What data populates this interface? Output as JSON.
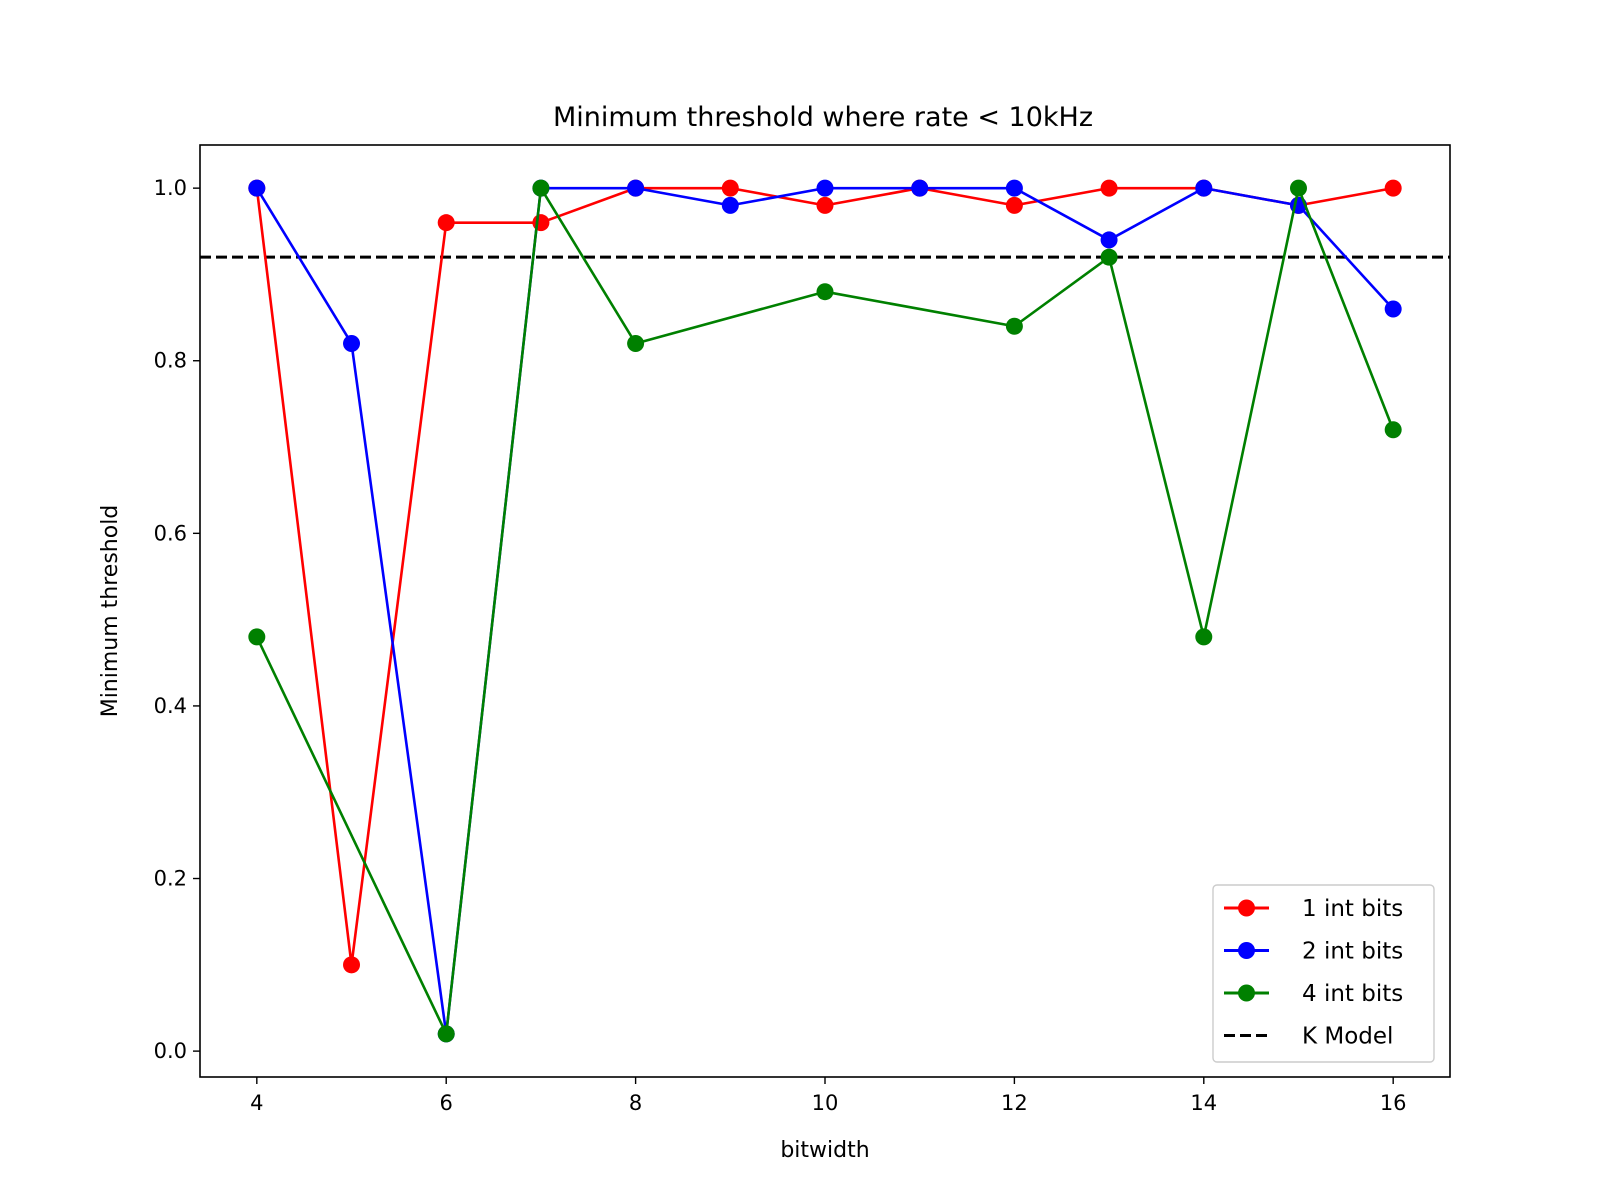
{
  "chart_data": {
    "type": "line",
    "title": "Minimum threshold where rate < 10kHz",
    "xlabel": "bitwidth",
    "ylabel": "Minimum threshold",
    "xlim": [
      3.4,
      16.6
    ],
    "ylim": [
      -0.03,
      1.05
    ],
    "xticks": [
      4,
      6,
      8,
      10,
      12,
      14,
      16
    ],
    "yticks": [
      0.0,
      0.2,
      0.4,
      0.6,
      0.8,
      1.0
    ],
    "ytick_labels": [
      "0.0",
      "0.2",
      "0.4",
      "0.6",
      "0.8",
      "1.0"
    ],
    "grid": false,
    "legend_position": "lower-right",
    "x": [
      4,
      5,
      6,
      7,
      8,
      9,
      10,
      11,
      12,
      13,
      14,
      15,
      16
    ],
    "series": [
      {
        "name": "1 int bits",
        "color": "#ff0000",
        "marker": "circle",
        "values": [
          1.0,
          0.1,
          0.96,
          0.96,
          1.0,
          1.0,
          0.98,
          1.0,
          0.98,
          1.0,
          1.0,
          0.98,
          1.0
        ]
      },
      {
        "name": "2 int bits",
        "color": "#0000ff",
        "marker": "circle",
        "values": [
          1.0,
          0.82,
          0.02,
          1.0,
          1.0,
          0.98,
          1.0,
          1.0,
          1.0,
          0.94,
          1.0,
          0.98,
          0.86
        ]
      },
      {
        "name": "4 int bits",
        "color": "#008000",
        "marker": "circle",
        "values": [
          0.48,
          null,
          0.02,
          1.0,
          0.82,
          null,
          0.88,
          null,
          0.84,
          0.92,
          0.48,
          1.0,
          0.72
        ]
      }
    ],
    "reference_lines": [
      {
        "name": "K Model",
        "y": 0.92,
        "color": "#000000",
        "style": "dashed"
      }
    ]
  }
}
